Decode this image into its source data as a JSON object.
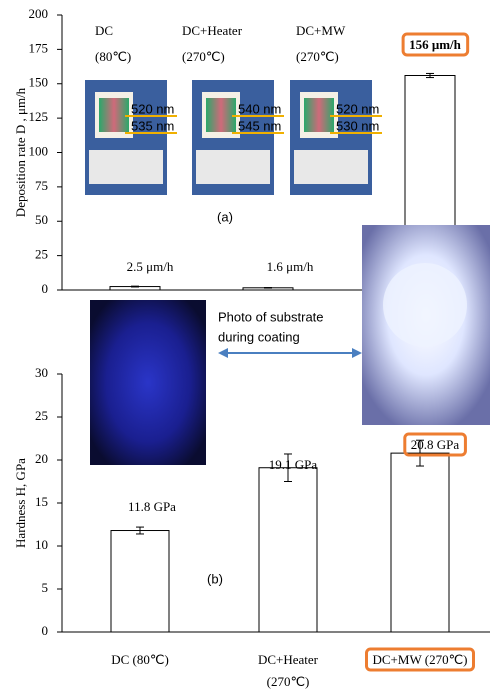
{
  "chart_data": [
    {
      "type": "bar",
      "categories": [
        "DC",
        "DC+Heater",
        "DC+MW"
      ],
      "category_notes": [
        "(80℃)",
        "(270℃)",
        "(270℃)"
      ],
      "values": [
        2.5,
        1.6,
        156
      ],
      "errors": [
        0.3,
        0.2,
        1.5
      ],
      "value_labels": [
        "2.5 μm/h",
        "1.6 μm/h",
        "156 μm/h"
      ],
      "y_label": "Deposition rate D , μm/h",
      "ylim": [
        0,
        200
      ],
      "yticks": [
        0,
        25,
        50,
        75,
        100,
        125,
        150,
        175,
        200
      ],
      "panel_label": "(a)",
      "photo_labels": [
        [
          "520 nm",
          "535 nm"
        ],
        [
          "540 nm",
          "545 nm"
        ],
        [
          "520 nm",
          "530 nm"
        ]
      ],
      "highlight_color": "#ed7d31"
    },
    {
      "type": "bar",
      "categories": [
        [
          "DC (80℃)"
        ],
        [
          "DC+Heater",
          "(270℃)"
        ],
        [
          "DC+MW (270℃)"
        ]
      ],
      "values": [
        11.8,
        19.1,
        20.8
      ],
      "errors": [
        0.4,
        1.6,
        1.5
      ],
      "value_labels": [
        "11.8 GPa",
        "19.1 GPa",
        "20.8 GPa"
      ],
      "y_label": "Hardness H, GPa",
      "ylim": [
        0,
        30
      ],
      "yticks": [
        0,
        5,
        10,
        15,
        20,
        25,
        30
      ],
      "panel_label": "(b)",
      "annotation": [
        "Photo of substrate",
        "during coating"
      ],
      "highlight_color": "#ed7d31"
    }
  ]
}
